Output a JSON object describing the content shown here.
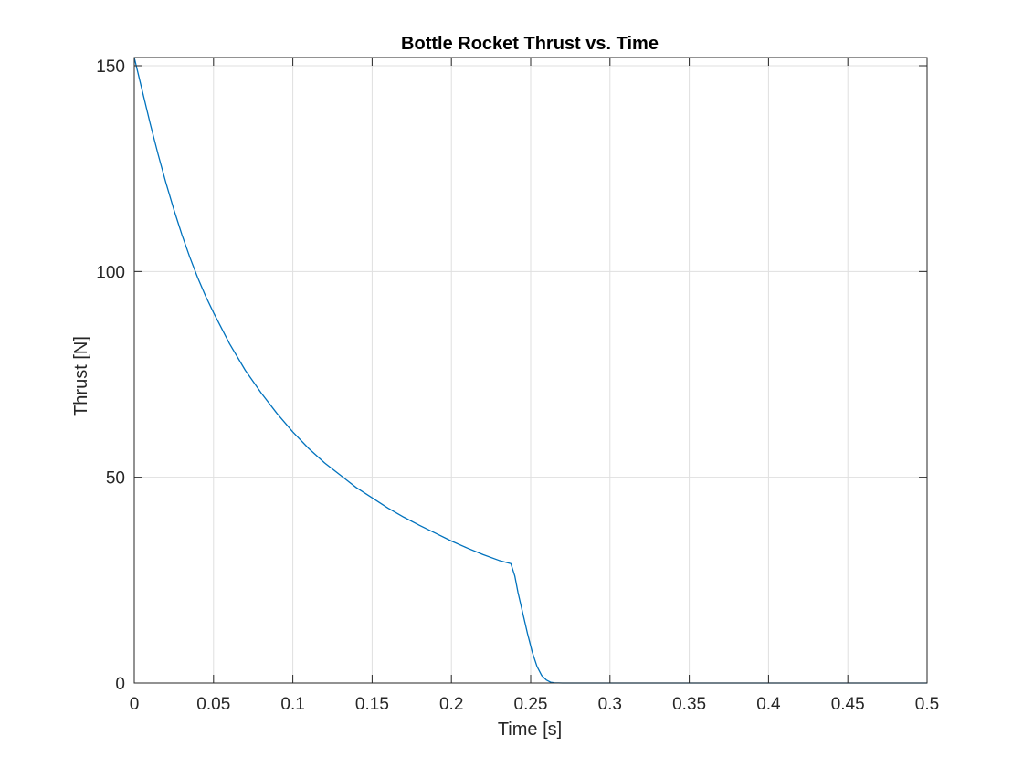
{
  "chart_data": {
    "type": "line",
    "title": "Bottle Rocket Thrust vs. Time",
    "xlabel": "Time [s]",
    "ylabel": "Thrust [N]",
    "xlim": [
      0,
      0.5
    ],
    "ylim": [
      0,
      152
    ],
    "xticks": [
      0,
      0.05,
      0.1,
      0.15,
      0.2,
      0.25,
      0.3,
      0.35,
      0.4,
      0.45,
      0.5
    ],
    "xtick_labels": [
      "0",
      "0.05",
      "0.1",
      "0.15",
      "0.2",
      "0.25",
      "0.3",
      "0.35",
      "0.4",
      "0.45",
      "0.5"
    ],
    "yticks": [
      0,
      50,
      100,
      150
    ],
    "ytick_labels": [
      "0",
      "50",
      "100",
      "150"
    ],
    "grid": true,
    "box": true,
    "series": [
      {
        "color": "#0072BD",
        "x": [
          0,
          0.005,
          0.01,
          0.015,
          0.02,
          0.025,
          0.03,
          0.035,
          0.04,
          0.045,
          0.05,
          0.06,
          0.07,
          0.08,
          0.09,
          0.1,
          0.11,
          0.12,
          0.13,
          0.14,
          0.15,
          0.16,
          0.17,
          0.18,
          0.19,
          0.2,
          0.21,
          0.22,
          0.23,
          0.2375,
          0.24,
          0.242,
          0.245,
          0.248,
          0.251,
          0.254,
          0.257,
          0.26,
          0.2625,
          0.265,
          0.27,
          0.3,
          0.35,
          0.4,
          0.45,
          0.5
        ],
        "y": [
          152,
          144,
          136,
          128.5,
          121.5,
          115,
          109,
          103.5,
          98.5,
          94,
          90,
          82.5,
          76,
          70.5,
          65.5,
          61,
          57,
          53.5,
          50.5,
          47.5,
          45,
          42.5,
          40.3,
          38.3,
          36.4,
          34.5,
          32.8,
          31.2,
          29.8,
          29,
          26,
          22,
          17,
          12,
          7.5,
          4,
          1.8,
          0.7,
          0.2,
          0.05,
          0,
          0,
          0,
          0,
          0,
          0
        ]
      }
    ]
  }
}
